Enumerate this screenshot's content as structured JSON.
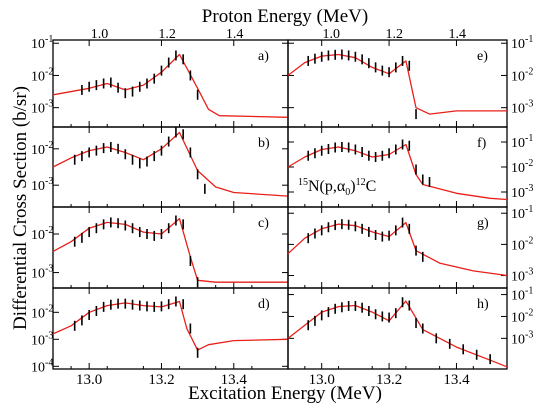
{
  "figure": {
    "top_axis_label": "Proton Energy (MeV)",
    "bottom_axis_label": "Excitation Energy (MeV)",
    "y_axis_label": "Differential Cross Section (b/sr)",
    "reaction_label": "15N(p,α0)12C",
    "reaction_parts": {
      "pre_sup": "15",
      "nuc1": "N(p,",
      "alpha": "α",
      "sub": "0",
      "close": ")",
      "post_sup": "12",
      "nuc2": "C"
    }
  },
  "colors": {
    "fit": "#e8201a",
    "data": "#000000",
    "frame": "#000000"
  },
  "chart_data": {
    "type": "scatter",
    "x_range": [
      12.9,
      13.55
    ],
    "x_ticks": [
      "13.0",
      "13.2",
      "13.4"
    ],
    "x_tick_values": [
      13.0,
      13.2,
      13.4
    ],
    "top_x_ticks": [
      "1.0",
      "1.2",
      "1.4"
    ],
    "top_x_tick_values": [
      13.0285,
      13.2155,
      13.4025
    ],
    "y_scale": "log",
    "panels": [
      {
        "label": "a)",
        "col": 0,
        "row": 0,
        "ylim_exp": [
          -3.6,
          -0.9
        ],
        "ytick_exps": [
          -3,
          -2,
          -1
        ],
        "fit": [
          [
            12.9,
            -2.6
          ],
          [
            13.0,
            -2.4
          ],
          [
            13.05,
            -2.25
          ],
          [
            13.1,
            -2.45
          ],
          [
            13.15,
            -2.3
          ],
          [
            13.2,
            -1.9
          ],
          [
            13.25,
            -1.35
          ],
          [
            13.3,
            -2.4
          ],
          [
            13.33,
            -3.05
          ],
          [
            13.36,
            -3.25
          ],
          [
            13.55,
            -3.3
          ]
        ],
        "points": [
          [
            12.98,
            -2.45
          ],
          [
            13.0,
            -2.35
          ],
          [
            13.02,
            -2.3
          ],
          [
            13.04,
            -2.25
          ],
          [
            13.06,
            -2.22
          ],
          [
            13.08,
            -2.38
          ],
          [
            13.1,
            -2.55
          ],
          [
            13.12,
            -2.5
          ],
          [
            13.14,
            -2.35
          ],
          [
            13.16,
            -2.25
          ],
          [
            13.18,
            -2.1
          ],
          [
            13.2,
            -1.85
          ],
          [
            13.22,
            -1.6
          ],
          [
            13.24,
            -1.38
          ],
          [
            13.26,
            -1.5
          ],
          [
            13.28,
            -2.0
          ],
          [
            13.3,
            -2.6
          ]
        ]
      },
      {
        "label": "b)",
        "col": 0,
        "row": 1,
        "ylim_exp": [
          -3.6,
          -1.4
        ],
        "ytick_exps": [
          -3,
          -2
        ],
        "fit": [
          [
            12.9,
            -2.5
          ],
          [
            12.95,
            -2.25
          ],
          [
            13.0,
            -2.05
          ],
          [
            13.05,
            -1.95
          ],
          [
            13.1,
            -2.1
          ],
          [
            13.15,
            -2.3
          ],
          [
            13.2,
            -2.0
          ],
          [
            13.25,
            -1.55
          ],
          [
            13.3,
            -2.6
          ],
          [
            13.35,
            -3.05
          ],
          [
            13.4,
            -3.2
          ],
          [
            13.55,
            -3.3
          ]
        ],
        "points": [
          [
            12.96,
            -2.3
          ],
          [
            12.98,
            -2.2
          ],
          [
            13.0,
            -2.1
          ],
          [
            13.02,
            -2.05
          ],
          [
            13.04,
            -1.98
          ],
          [
            13.06,
            -1.95
          ],
          [
            13.08,
            -2.0
          ],
          [
            13.1,
            -2.15
          ],
          [
            13.12,
            -2.3
          ],
          [
            13.14,
            -2.4
          ],
          [
            13.16,
            -2.35
          ],
          [
            13.18,
            -2.2
          ],
          [
            13.2,
            -2.05
          ],
          [
            13.22,
            -1.8
          ],
          [
            13.24,
            -1.55
          ],
          [
            13.26,
            -1.6
          ],
          [
            13.28,
            -2.1
          ],
          [
            13.3,
            -2.7
          ],
          [
            13.32,
            -3.1
          ]
        ]
      },
      {
        "label": "c)",
        "col": 0,
        "row": 2,
        "ylim_exp": [
          -3.4,
          -1.3
        ],
        "ytick_exps": [
          -3,
          -2
        ],
        "fit": [
          [
            12.9,
            -2.45
          ],
          [
            12.95,
            -2.2
          ],
          [
            13.0,
            -1.85
          ],
          [
            13.05,
            -1.7
          ],
          [
            13.1,
            -1.75
          ],
          [
            13.15,
            -1.95
          ],
          [
            13.2,
            -2.0
          ],
          [
            13.25,
            -1.6
          ],
          [
            13.28,
            -2.6
          ],
          [
            13.3,
            -3.2
          ],
          [
            13.35,
            -3.25
          ],
          [
            13.55,
            -3.25
          ]
        ],
        "points": [
          [
            12.96,
            -2.2
          ],
          [
            12.98,
            -2.1
          ],
          [
            13.0,
            -1.95
          ],
          [
            13.02,
            -1.85
          ],
          [
            13.04,
            -1.75
          ],
          [
            13.06,
            -1.7
          ],
          [
            13.08,
            -1.72
          ],
          [
            13.1,
            -1.78
          ],
          [
            13.12,
            -1.85
          ],
          [
            13.14,
            -1.95
          ],
          [
            13.16,
            -2.0
          ],
          [
            13.18,
            -2.05
          ],
          [
            13.2,
            -2.0
          ],
          [
            13.22,
            -1.85
          ],
          [
            13.24,
            -1.65
          ],
          [
            13.26,
            -1.75
          ],
          [
            13.28,
            -2.7
          ],
          [
            13.3,
            -3.25
          ]
        ]
      },
      {
        "label": "d)",
        "col": 0,
        "row": 3,
        "ylim_exp": [
          -4.1,
          -1.1
        ],
        "ytick_exps": [
          -4,
          -3,
          -2,
          -1
        ],
        "fit": [
          [
            12.9,
            -2.8
          ],
          [
            12.95,
            -2.5
          ],
          [
            13.0,
            -2.0
          ],
          [
            13.05,
            -1.75
          ],
          [
            13.1,
            -1.65
          ],
          [
            13.15,
            -1.75
          ],
          [
            13.2,
            -1.8
          ],
          [
            13.25,
            -1.6
          ],
          [
            13.27,
            -2.6
          ],
          [
            13.3,
            -3.4
          ],
          [
            13.33,
            -3.2
          ],
          [
            13.4,
            -3.05
          ],
          [
            13.55,
            -3.0
          ]
        ],
        "points": [
          [
            12.96,
            -2.5
          ],
          [
            12.98,
            -2.3
          ],
          [
            13.0,
            -2.1
          ],
          [
            13.02,
            -1.95
          ],
          [
            13.04,
            -1.8
          ],
          [
            13.06,
            -1.72
          ],
          [
            13.08,
            -1.68
          ],
          [
            13.1,
            -1.68
          ],
          [
            13.12,
            -1.72
          ],
          [
            13.14,
            -1.75
          ],
          [
            13.16,
            -1.78
          ],
          [
            13.18,
            -1.8
          ],
          [
            13.2,
            -1.78
          ],
          [
            13.22,
            -1.7
          ],
          [
            13.24,
            -1.6
          ],
          [
            13.26,
            -1.7
          ],
          [
            13.28,
            -2.6
          ],
          [
            13.3,
            -3.5
          ]
        ]
      },
      {
        "label": "e)",
        "col": 1,
        "row": 0,
        "ylim_exp": [
          -3.6,
          -0.9
        ],
        "ytick_exps": [
          -3,
          -2,
          -1
        ],
        "fit": [
          [
            12.9,
            -2.0
          ],
          [
            12.95,
            -1.6
          ],
          [
            13.0,
            -1.4
          ],
          [
            13.05,
            -1.35
          ],
          [
            13.1,
            -1.45
          ],
          [
            13.15,
            -1.75
          ],
          [
            13.2,
            -1.95
          ],
          [
            13.25,
            -1.55
          ],
          [
            13.28,
            -3.0
          ],
          [
            13.32,
            -3.2
          ],
          [
            13.4,
            -3.1
          ],
          [
            13.55,
            -3.1
          ]
        ],
        "points": [
          [
            12.96,
            -1.55
          ],
          [
            12.98,
            -1.48
          ],
          [
            13.0,
            -1.42
          ],
          [
            13.02,
            -1.38
          ],
          [
            13.04,
            -1.36
          ],
          [
            13.06,
            -1.35
          ],
          [
            13.08,
            -1.38
          ],
          [
            13.1,
            -1.42
          ],
          [
            13.12,
            -1.5
          ],
          [
            13.14,
            -1.62
          ],
          [
            13.16,
            -1.75
          ],
          [
            13.18,
            -1.85
          ],
          [
            13.2,
            -1.9
          ],
          [
            13.22,
            -1.75
          ],
          [
            13.24,
            -1.55
          ],
          [
            13.26,
            -1.7
          ],
          [
            13.28,
            -3.2
          ]
        ]
      },
      {
        "label": "f)",
        "col": 1,
        "row": 1,
        "ylim_exp": [
          -3.6,
          -0.4
        ],
        "ytick_exps": [
          -3,
          -2,
          -1
        ],
        "fit": [
          [
            12.9,
            -2.0
          ],
          [
            12.95,
            -1.6
          ],
          [
            13.0,
            -1.3
          ],
          [
            13.05,
            -1.2
          ],
          [
            13.1,
            -1.35
          ],
          [
            13.15,
            -1.6
          ],
          [
            13.2,
            -1.5
          ],
          [
            13.25,
            -1.1
          ],
          [
            13.28,
            -2.3
          ],
          [
            13.3,
            -2.7
          ],
          [
            13.4,
            -3.05
          ],
          [
            13.5,
            -3.25
          ],
          [
            13.55,
            -3.3
          ]
        ],
        "points": [
          [
            12.96,
            -1.55
          ],
          [
            12.98,
            -1.45
          ],
          [
            13.0,
            -1.35
          ],
          [
            13.02,
            -1.28
          ],
          [
            13.04,
            -1.22
          ],
          [
            13.06,
            -1.2
          ],
          [
            13.08,
            -1.22
          ],
          [
            13.1,
            -1.3
          ],
          [
            13.12,
            -1.4
          ],
          [
            13.14,
            -1.55
          ],
          [
            13.16,
            -1.6
          ],
          [
            13.18,
            -1.55
          ],
          [
            13.2,
            -1.45
          ],
          [
            13.22,
            -1.3
          ],
          [
            13.24,
            -1.1
          ],
          [
            13.26,
            -1.15
          ],
          [
            13.28,
            -2.1
          ],
          [
            13.3,
            -2.5
          ],
          [
            13.32,
            -2.6
          ]
        ]
      },
      {
        "label": "g)",
        "col": 1,
        "row": 2,
        "ylim_exp": [
          -3.4,
          -0.8
        ],
        "ytick_exps": [
          -3,
          -2,
          -1
        ],
        "fit": [
          [
            12.9,
            -2.3
          ],
          [
            12.95,
            -1.8
          ],
          [
            13.0,
            -1.5
          ],
          [
            13.05,
            -1.35
          ],
          [
            13.1,
            -1.4
          ],
          [
            13.15,
            -1.6
          ],
          [
            13.2,
            -1.75
          ],
          [
            13.25,
            -1.3
          ],
          [
            13.28,
            -2.2
          ],
          [
            13.35,
            -2.6
          ],
          [
            13.45,
            -2.85
          ],
          [
            13.55,
            -3.0
          ]
        ],
        "points": [
          [
            12.96,
            -1.8
          ],
          [
            12.98,
            -1.65
          ],
          [
            13.0,
            -1.55
          ],
          [
            13.02,
            -1.45
          ],
          [
            13.04,
            -1.38
          ],
          [
            13.06,
            -1.35
          ],
          [
            13.08,
            -1.37
          ],
          [
            13.1,
            -1.42
          ],
          [
            13.12,
            -1.5
          ],
          [
            13.14,
            -1.6
          ],
          [
            13.16,
            -1.7
          ],
          [
            13.18,
            -1.75
          ],
          [
            13.2,
            -1.72
          ],
          [
            13.22,
            -1.55
          ],
          [
            13.24,
            -1.3
          ],
          [
            13.26,
            -1.5
          ],
          [
            13.28,
            -2.2
          ],
          [
            13.3,
            -2.4
          ]
        ]
      },
      {
        "label": "h)",
        "col": 1,
        "row": 3,
        "ylim_exp": [
          -4.4,
          -0.7
        ],
        "ytick_exps": [
          -3,
          -2,
          -1
        ],
        "fit": [
          [
            12.9,
            -3.0
          ],
          [
            12.95,
            -2.4
          ],
          [
            13.0,
            -1.8
          ],
          [
            13.05,
            -1.55
          ],
          [
            13.1,
            -1.5
          ],
          [
            13.15,
            -1.8
          ],
          [
            13.2,
            -2.2
          ],
          [
            13.25,
            -1.3
          ],
          [
            13.3,
            -2.6
          ],
          [
            13.4,
            -3.4
          ],
          [
            13.5,
            -4.0
          ],
          [
            13.55,
            -4.3
          ]
        ],
        "points": [
          [
            12.96,
            -2.4
          ],
          [
            12.98,
            -2.2
          ],
          [
            13.0,
            -1.95
          ],
          [
            13.02,
            -1.8
          ],
          [
            13.04,
            -1.65
          ],
          [
            13.06,
            -1.58
          ],
          [
            13.08,
            -1.52
          ],
          [
            13.1,
            -1.52
          ],
          [
            13.12,
            -1.6
          ],
          [
            13.14,
            -1.75
          ],
          [
            13.16,
            -1.9
          ],
          [
            13.18,
            -2.0
          ],
          [
            13.2,
            -2.05
          ],
          [
            13.22,
            -1.85
          ],
          [
            13.24,
            -1.35
          ],
          [
            13.26,
            -1.5
          ],
          [
            13.28,
            -2.3
          ],
          [
            13.3,
            -2.55
          ],
          [
            13.34,
            -3.0
          ],
          [
            13.38,
            -3.25
          ],
          [
            13.42,
            -3.5
          ],
          [
            13.46,
            -3.75
          ],
          [
            13.5,
            -3.95
          ]
        ]
      }
    ]
  }
}
